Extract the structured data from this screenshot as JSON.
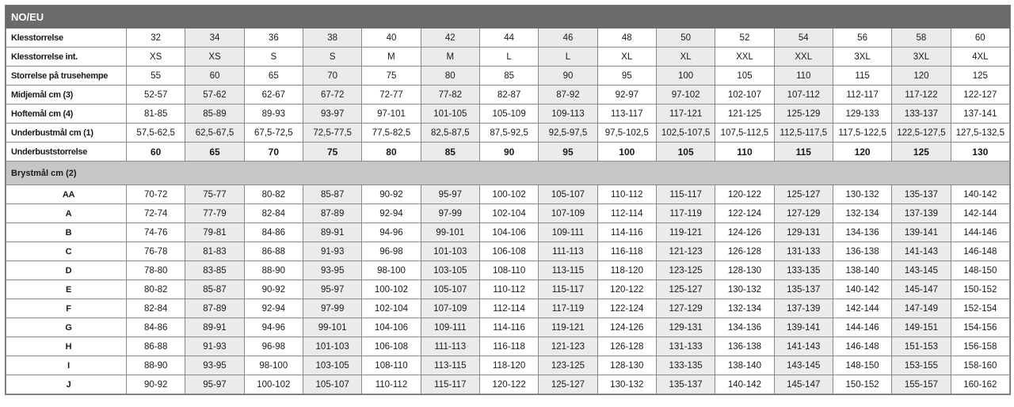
{
  "title": "NO/EU",
  "colors": {
    "header_bg": "#6b6b6b",
    "section_bg": "#c6c6c6",
    "alt_column_bg": "#ebebeb"
  },
  "size_rows": [
    {
      "label": "Klesstorrelse",
      "values": [
        "32",
        "34",
        "36",
        "38",
        "40",
        "42",
        "44",
        "46",
        "48",
        "50",
        "52",
        "54",
        "56",
        "58",
        "60"
      ]
    },
    {
      "label": "Klesstorrelse int.",
      "values": [
        "XS",
        "XS",
        "S",
        "S",
        "M",
        "M",
        "L",
        "L",
        "XL",
        "XL",
        "XXL",
        "XXL",
        "3XL",
        "3XL",
        "4XL"
      ]
    },
    {
      "label": "Storrelse på trusehempe",
      "values": [
        "55",
        "60",
        "65",
        "70",
        "75",
        "80",
        "85",
        "90",
        "95",
        "100",
        "105",
        "110",
        "115",
        "120",
        "125"
      ]
    },
    {
      "label": "Midjemål cm (3)",
      "values": [
        "52-57",
        "57-62",
        "62-67",
        "67-72",
        "72-77",
        "77-82",
        "82-87",
        "87-92",
        "92-97",
        "97-102",
        "102-107",
        "107-112",
        "112-117",
        "117-122",
        "122-127"
      ]
    },
    {
      "label": "Hoftemål cm (4)",
      "values": [
        "81-85",
        "85-89",
        "89-93",
        "93-97",
        "97-101",
        "101-105",
        "105-109",
        "109-113",
        "113-117",
        "117-121",
        "121-125",
        "125-129",
        "129-133",
        "133-137",
        "137-141"
      ]
    },
    {
      "label": "Underbustmål cm (1)",
      "values": [
        "57,5-62,5",
        "62,5-67,5",
        "67,5-72,5",
        "72,5-77,5",
        "77,5-82,5",
        "82,5-87,5",
        "87,5-92,5",
        "92,5-97,5",
        "97,5-102,5",
        "102,5-107,5",
        "107,5-112,5",
        "112,5-117,5",
        "117,5-122,5",
        "122,5-127,5",
        "127,5-132,5"
      ]
    },
    {
      "label": "Underbuststorrelse",
      "bold": true,
      "values": [
        "60",
        "65",
        "70",
        "75",
        "80",
        "85",
        "90",
        "95",
        "100",
        "105",
        "110",
        "115",
        "120",
        "125",
        "130"
      ]
    }
  ],
  "section_label": "Brystmål cm (2)",
  "cup_rows": [
    {
      "label": "AA",
      "values": [
        "70-72",
        "75-77",
        "80-82",
        "85-87",
        "90-92",
        "95-97",
        "100-102",
        "105-107",
        "110-112",
        "115-117",
        "120-122",
        "125-127",
        "130-132",
        "135-137",
        "140-142"
      ]
    },
    {
      "label": "A",
      "values": [
        "72-74",
        "77-79",
        "82-84",
        "87-89",
        "92-94",
        "97-99",
        "102-104",
        "107-109",
        "112-114",
        "117-119",
        "122-124",
        "127-129",
        "132-134",
        "137-139",
        "142-144"
      ]
    },
    {
      "label": "B",
      "values": [
        "74-76",
        "79-81",
        "84-86",
        "89-91",
        "94-96",
        "99-101",
        "104-106",
        "109-111",
        "114-116",
        "119-121",
        "124-126",
        "129-131",
        "134-136",
        "139-141",
        "144-146"
      ]
    },
    {
      "label": "C",
      "values": [
        "76-78",
        "81-83",
        "86-88",
        "91-93",
        "96-98",
        "101-103",
        "106-108",
        "111-113",
        "116-118",
        "121-123",
        "126-128",
        "131-133",
        "136-138",
        "141-143",
        "146-148"
      ]
    },
    {
      "label": "D",
      "values": [
        "78-80",
        "83-85",
        "88-90",
        "93-95",
        "98-100",
        "103-105",
        "108-110",
        "113-115",
        "118-120",
        "123-125",
        "128-130",
        "133-135",
        "138-140",
        "143-145",
        "148-150"
      ]
    },
    {
      "label": "E",
      "values": [
        "80-82",
        "85-87",
        "90-92",
        "95-97",
        "100-102",
        "105-107",
        "110-112",
        "115-117",
        "120-122",
        "125-127",
        "130-132",
        "135-137",
        "140-142",
        "145-147",
        "150-152"
      ]
    },
    {
      "label": "F",
      "values": [
        "82-84",
        "87-89",
        "92-94",
        "97-99",
        "102-104",
        "107-109",
        "112-114",
        "117-119",
        "122-124",
        "127-129",
        "132-134",
        "137-139",
        "142-144",
        "147-149",
        "152-154"
      ]
    },
    {
      "label": "G",
      "values": [
        "84-86",
        "89-91",
        "94-96",
        "99-101",
        "104-106",
        "109-111",
        "114-116",
        "119-121",
        "124-126",
        "129-131",
        "134-136",
        "139-141",
        "144-146",
        "149-151",
        "154-156"
      ]
    },
    {
      "label": "H",
      "values": [
        "86-88",
        "91-93",
        "96-98",
        "101-103",
        "106-108",
        "111-113",
        "116-118",
        "121-123",
        "126-128",
        "131-133",
        "136-138",
        "141-143",
        "146-148",
        "151-153",
        "156-158"
      ]
    },
    {
      "label": "I",
      "values": [
        "88-90",
        "93-95",
        "98-100",
        "103-105",
        "108-110",
        "113-115",
        "118-120",
        "123-125",
        "128-130",
        "133-135",
        "138-140",
        "143-145",
        "148-150",
        "153-155",
        "158-160"
      ]
    },
    {
      "label": "J",
      "values": [
        "90-92",
        "95-97",
        "100-102",
        "105-107",
        "110-112",
        "115-117",
        "120-122",
        "125-127",
        "130-132",
        "135-137",
        "140-142",
        "145-147",
        "150-152",
        "155-157",
        "160-162"
      ]
    }
  ]
}
